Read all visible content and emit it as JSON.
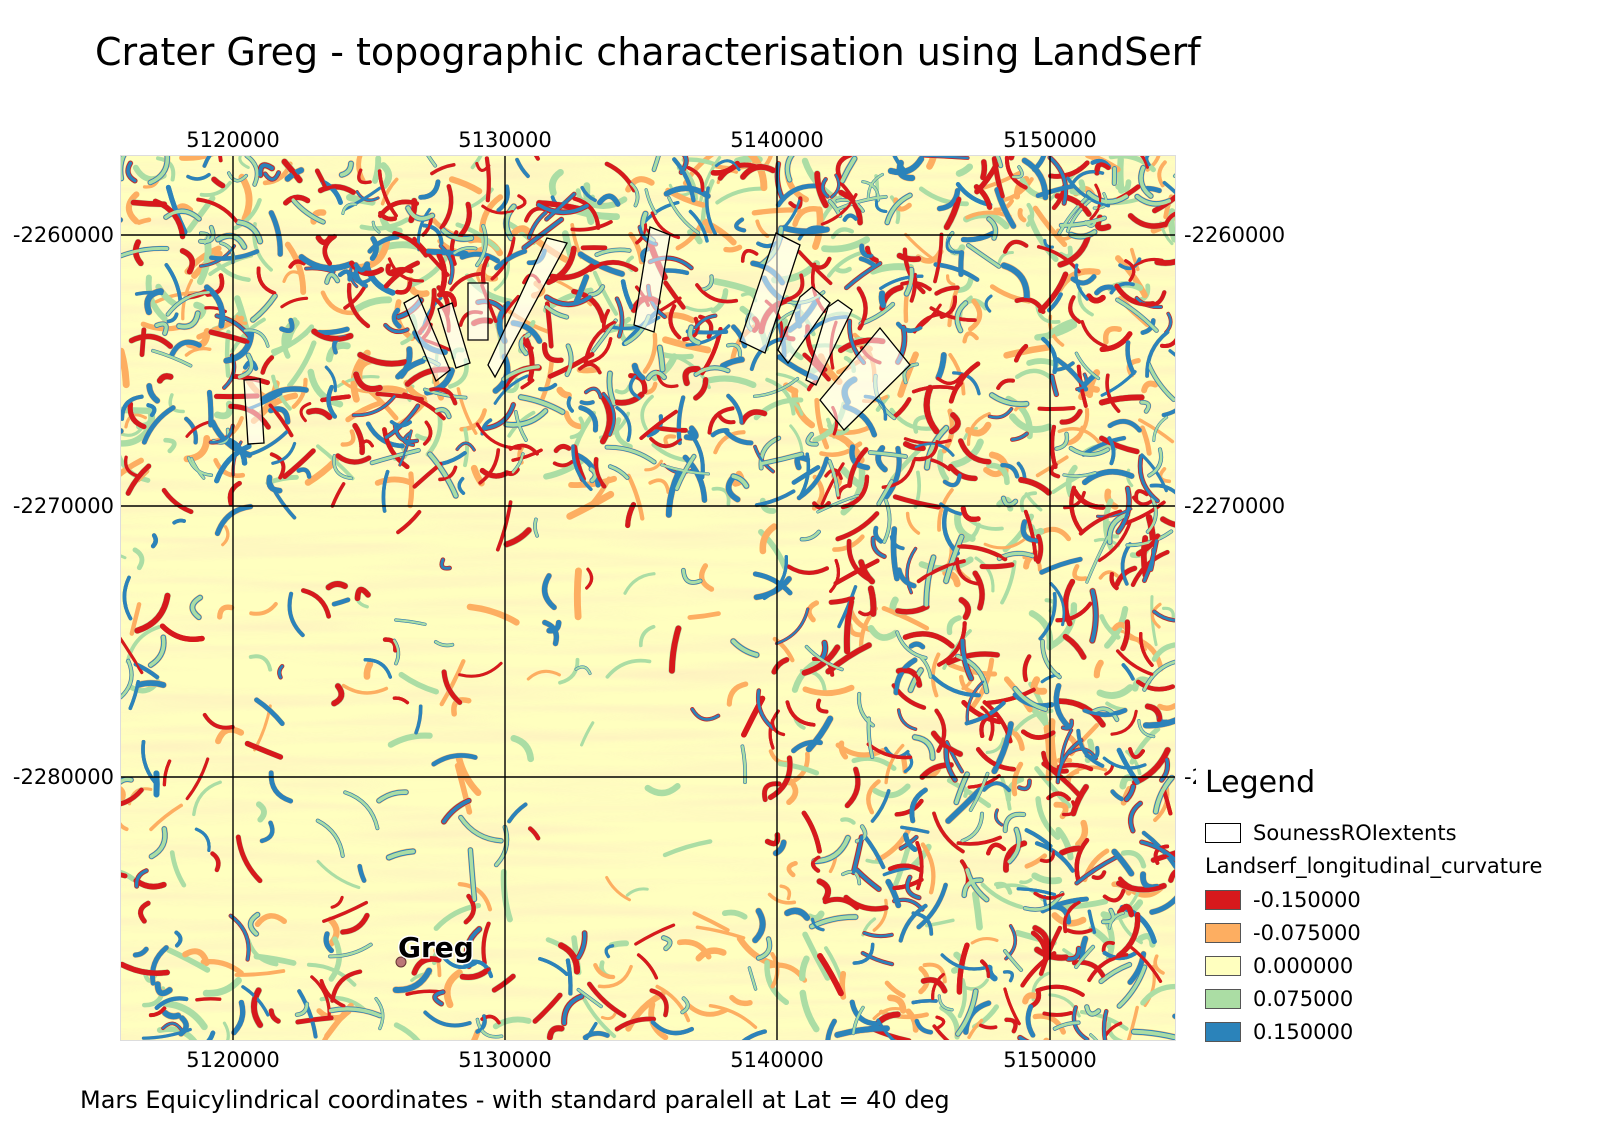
{
  "title": "Crater Greg - topographic characterisation using LandSerf",
  "subtitle": "Mars Equicylindrical coordinates - with standard paralell at Lat = 40 deg",
  "axes": {
    "x_ticks": [
      "5120000",
      "5130000",
      "5140000",
      "5150000"
    ],
    "y_ticks": [
      "-2260000",
      "-2270000",
      "-2280000"
    ],
    "right_partial_tick": "-2"
  },
  "map": {
    "label": "Greg",
    "colors": {
      "strong_neg": "#d7191c",
      "neg": "#fdae61",
      "zero": "#ffffbf",
      "pos": "#abdda4",
      "strong_pos": "#2b83ba"
    }
  },
  "legend": {
    "title": "Legend",
    "roi_label": "SounessROIextents",
    "group_label": "Landserf_longitudinal_curvature",
    "entries": [
      {
        "label": "-0.150000",
        "color": "#d7191c"
      },
      {
        "label": "-0.075000",
        "color": "#fdae61"
      },
      {
        "label": "0.000000",
        "color": "#ffffbf"
      },
      {
        "label": "0.075000",
        "color": "#abdda4"
      },
      {
        "label": "0.150000",
        "color": "#2b83ba"
      }
    ]
  }
}
